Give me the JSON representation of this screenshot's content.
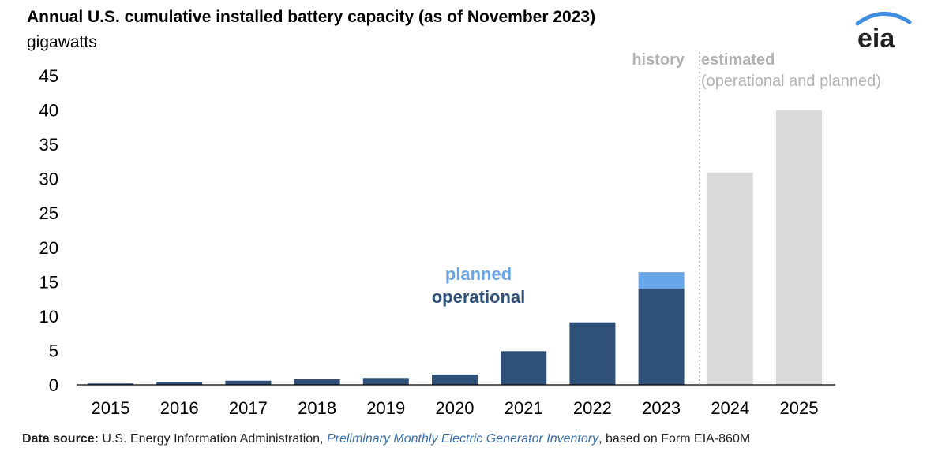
{
  "header": {
    "title": "Annual U.S. cumulative installed battery capacity (as of November 2023)",
    "units": "gigawatts"
  },
  "logo": {
    "text": "eia",
    "icon": "eia-logo-icon",
    "arc_color": "#3f8ee0"
  },
  "source": {
    "label": "Data source:",
    "org": "U.S. Energy Information Administration,",
    "publication": "Preliminary Monthly Electric Generator Inventory",
    "rest": ", based on Form EIA-860M"
  },
  "colors": {
    "operational": "#2f5079",
    "planned": "#69a6e9",
    "estimated": "#d9d9d9",
    "annotation_gray": "#b3b3b3"
  },
  "chart_data": {
    "type": "bar",
    "stacked": true,
    "title": "Annual U.S. cumulative installed battery capacity (as of November 2023)",
    "ylabel": "gigawatts",
    "ylim": [
      0,
      45
    ],
    "yticks": [
      0,
      5,
      10,
      15,
      20,
      25,
      30,
      35,
      40,
      45
    ],
    "grid": false,
    "categories": [
      "2015",
      "2016",
      "2017",
      "2018",
      "2019",
      "2020",
      "2021",
      "2022",
      "2023",
      "2024",
      "2025"
    ],
    "series": [
      {
        "name": "operational",
        "values": [
          0.2,
          0.4,
          0.6,
          0.8,
          1.0,
          1.5,
          4.9,
          9.1,
          14.0,
          null,
          null
        ]
      },
      {
        "name": "planned",
        "values": [
          null,
          null,
          null,
          null,
          null,
          null,
          null,
          null,
          2.4,
          null,
          null
        ]
      },
      {
        "name": "",
        "values": [
          null,
          null,
          null,
          null,
          null,
          null,
          null,
          null,
          null,
          30.9,
          40.0
        ]
      }
    ],
    "annotations": {
      "history": "history",
      "estimated": "estimated",
      "estimated_sub": "(operational and planned)"
    }
  }
}
